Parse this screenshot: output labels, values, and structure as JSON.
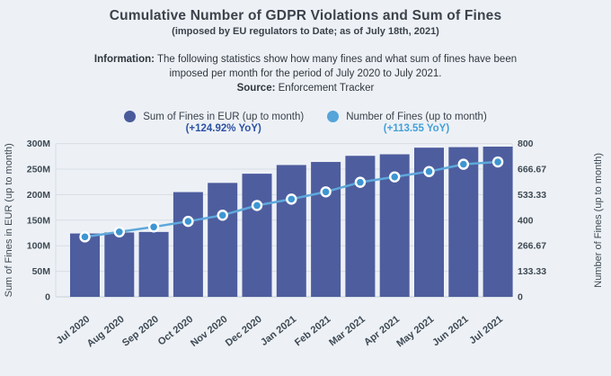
{
  "header": {
    "title": "Cumulative Number of GDPR Violations and Sum of Fines",
    "subtitle": "(imposed by EU regulators to Date; as of July 18th, 2021)"
  },
  "info": {
    "label": "Information:",
    "text": " The following statistics show how many fines and what sum of fines have been imposed per month for the period of July 2020 to July 2021.",
    "source_label": "Source:",
    "source_text": " Enforcement Tracker"
  },
  "legend": {
    "sum": {
      "label": "Sum of Fines in EUR (up to month)",
      "yoy": "(+124.92% YoY)",
      "swatch_color": "#4a5b9c",
      "yoy_color": "#2d52a3"
    },
    "count": {
      "label": "Number of Fines (up to month)",
      "yoy": "(+113.55 YoY)",
      "swatch_color": "#55a4da",
      "yoy_color": "#45a0d8"
    }
  },
  "chart_data": {
    "type": "bar",
    "subtype": "bar+line dual axis, cumulative by month",
    "categories": [
      "Jul 2020",
      "Aug 2020",
      "Sep 2020",
      "Oct 2020",
      "Nov 2020",
      "Dec 2020",
      "Jan 2021",
      "Feb 2021",
      "Mar 2021",
      "Apr 2021",
      "May 2021",
      "Jun 2021",
      "Jul 2021"
    ],
    "series": [
      {
        "name": "Sum of Fines in EUR (up to month)",
        "type": "bar",
        "axis": "left",
        "unit": "EUR millions",
        "color": "#4e5d9e",
        "values": [
          124,
          126,
          127,
          205,
          223,
          241,
          258,
          264,
          276,
          279,
          292,
          293,
          294
        ]
      },
      {
        "name": "Number of Fines (up to month)",
        "type": "line",
        "axis": "right",
        "unit": "fines",
        "color": "#3d96d2",
        "values": [
          313,
          339,
          365,
          394,
          426,
          477,
          510,
          548,
          598,
          626,
          654,
          692,
          704
        ]
      }
    ],
    "y_left": {
      "label": "Sum of Fines in EUR (up to month)",
      "ticks": [
        "300M",
        "250M",
        "200M",
        "150M",
        "100M",
        "50M",
        "0"
      ],
      "min": 0,
      "max": 300000000
    },
    "y_right": {
      "label": "Number of Fines (up to month)",
      "ticks": [
        "800",
        "666.67",
        "533.33",
        "400",
        "266.67",
        "133.33",
        "0"
      ],
      "min": 0,
      "max": 800
    },
    "grid": true,
    "legend_position": "top",
    "x_tick_rotation_deg": -38
  },
  "colors": {
    "background": "#edf1f6",
    "bar": "#4e5d9e",
    "line": "#5ea8db",
    "marker_fill": "#3d96d2",
    "marker_ring": "#ffffff",
    "gridline": "#d8dde4",
    "baseline": "#c7ced6",
    "axis_text": "#3e4953",
    "title_text": "#3b424b",
    "info_text": "#2f363d"
  }
}
